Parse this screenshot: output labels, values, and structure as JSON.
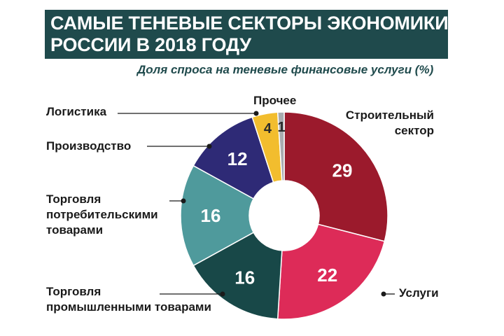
{
  "title_lines": [
    "САМЫЕ ТЕНЕВЫЕ СЕКТОРЫ ЭКОНОМИКИ",
    "РОССИИ В 2018 ГОДУ"
  ],
  "subtitle": "Доля спроса на теневые финансовые услуги (%)",
  "colors": {
    "title_bg": "#1f4a4c",
    "title_text": "#ffffff",
    "subtitle": "#1f4a4c",
    "value_text_light": "#ffffff",
    "value_text_dark": "#2a2a2a"
  },
  "chart_data": {
    "type": "pie",
    "style": "donut",
    "slices": [
      {
        "label": "Строительный\nсектор",
        "value": 29,
        "color": "#9b1a2c"
      },
      {
        "label": "Услуги",
        "value": 22,
        "color": "#dd2b58"
      },
      {
        "label": "Торговля\nпромышленными товарами",
        "value": 16,
        "color": "#184848"
      },
      {
        "label": "Торговля\nпотребительскими\nтоварами",
        "value": 16,
        "color": "#4f9a9c"
      },
      {
        "label": "Производство",
        "value": 12,
        "color": "#2e2a76"
      },
      {
        "label": "Логистика",
        "value": 4,
        "color": "#f2bd2e"
      },
      {
        "label": "Прочее",
        "value": 1,
        "color": "#a9abb0"
      }
    ]
  }
}
